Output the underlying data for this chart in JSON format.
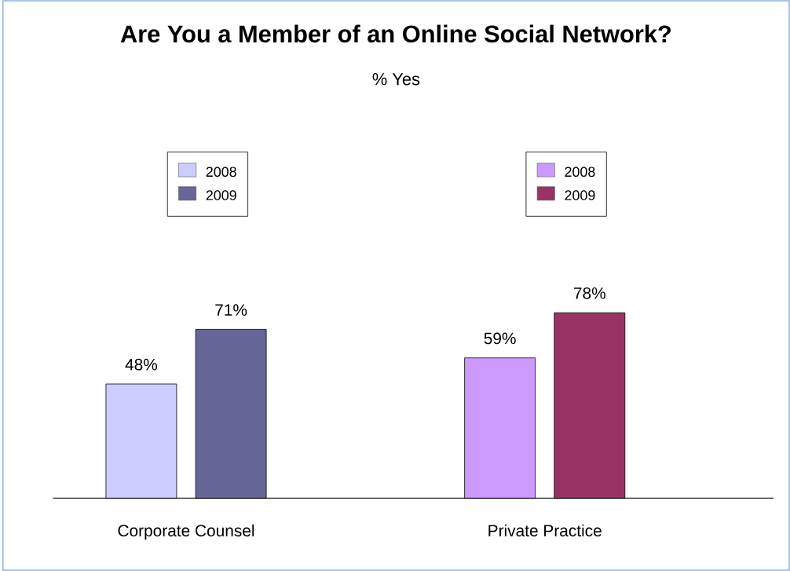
{
  "chart_data": {
    "type": "bar",
    "title": "Are You a Member of an Online Social Network?",
    "subtitle": "% Yes",
    "categories": [
      "Corporate Counsel",
      "Private Practice"
    ],
    "series": [
      {
        "name": "2008",
        "colors": [
          "#ccccff",
          "#cc99ff"
        ],
        "values": [
          48,
          59
        ],
        "value_labels": [
          "48%",
          "59%"
        ]
      },
      {
        "name": "2009",
        "colors": [
          "#666699",
          "#993366"
        ],
        "values": [
          71,
          78
        ],
        "value_labels": [
          "71%",
          "78%"
        ]
      }
    ],
    "legend": "top"
  }
}
